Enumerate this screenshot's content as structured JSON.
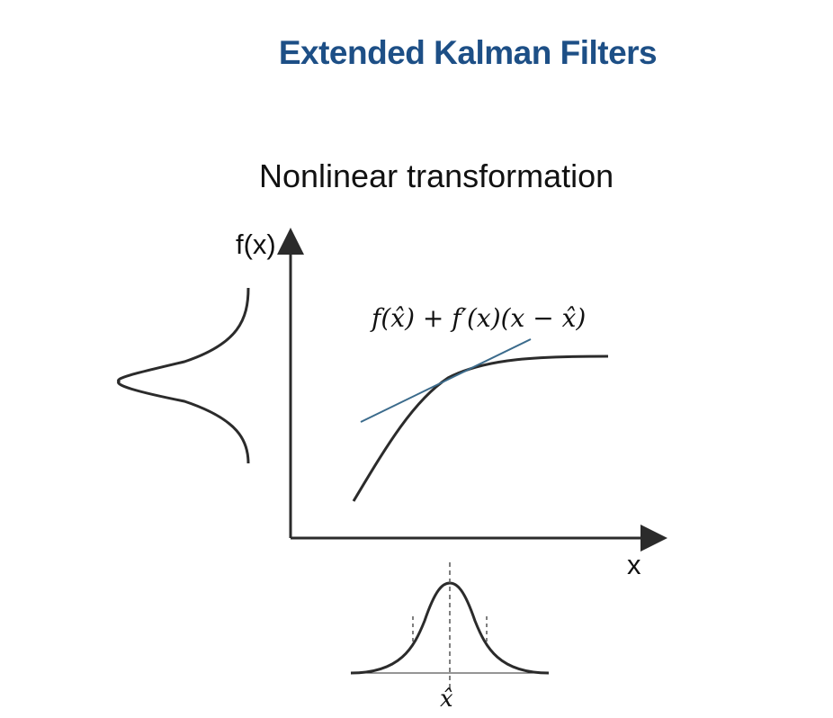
{
  "slide": {
    "title": "Extended Kalman Filters",
    "subtitle": "Nonlinear transformation"
  },
  "diagram": {
    "y_axis_label": "f(x)",
    "x_axis_label": "x",
    "tangent_formula": "f(x̂) + f′(x)(x − x̂)",
    "mean_label": "x̂",
    "colors": {
      "title": "#1d4f86",
      "curve": "#2b2b2b",
      "tangent": "#3b6b8c",
      "axes": "#2b2b2b"
    }
  }
}
